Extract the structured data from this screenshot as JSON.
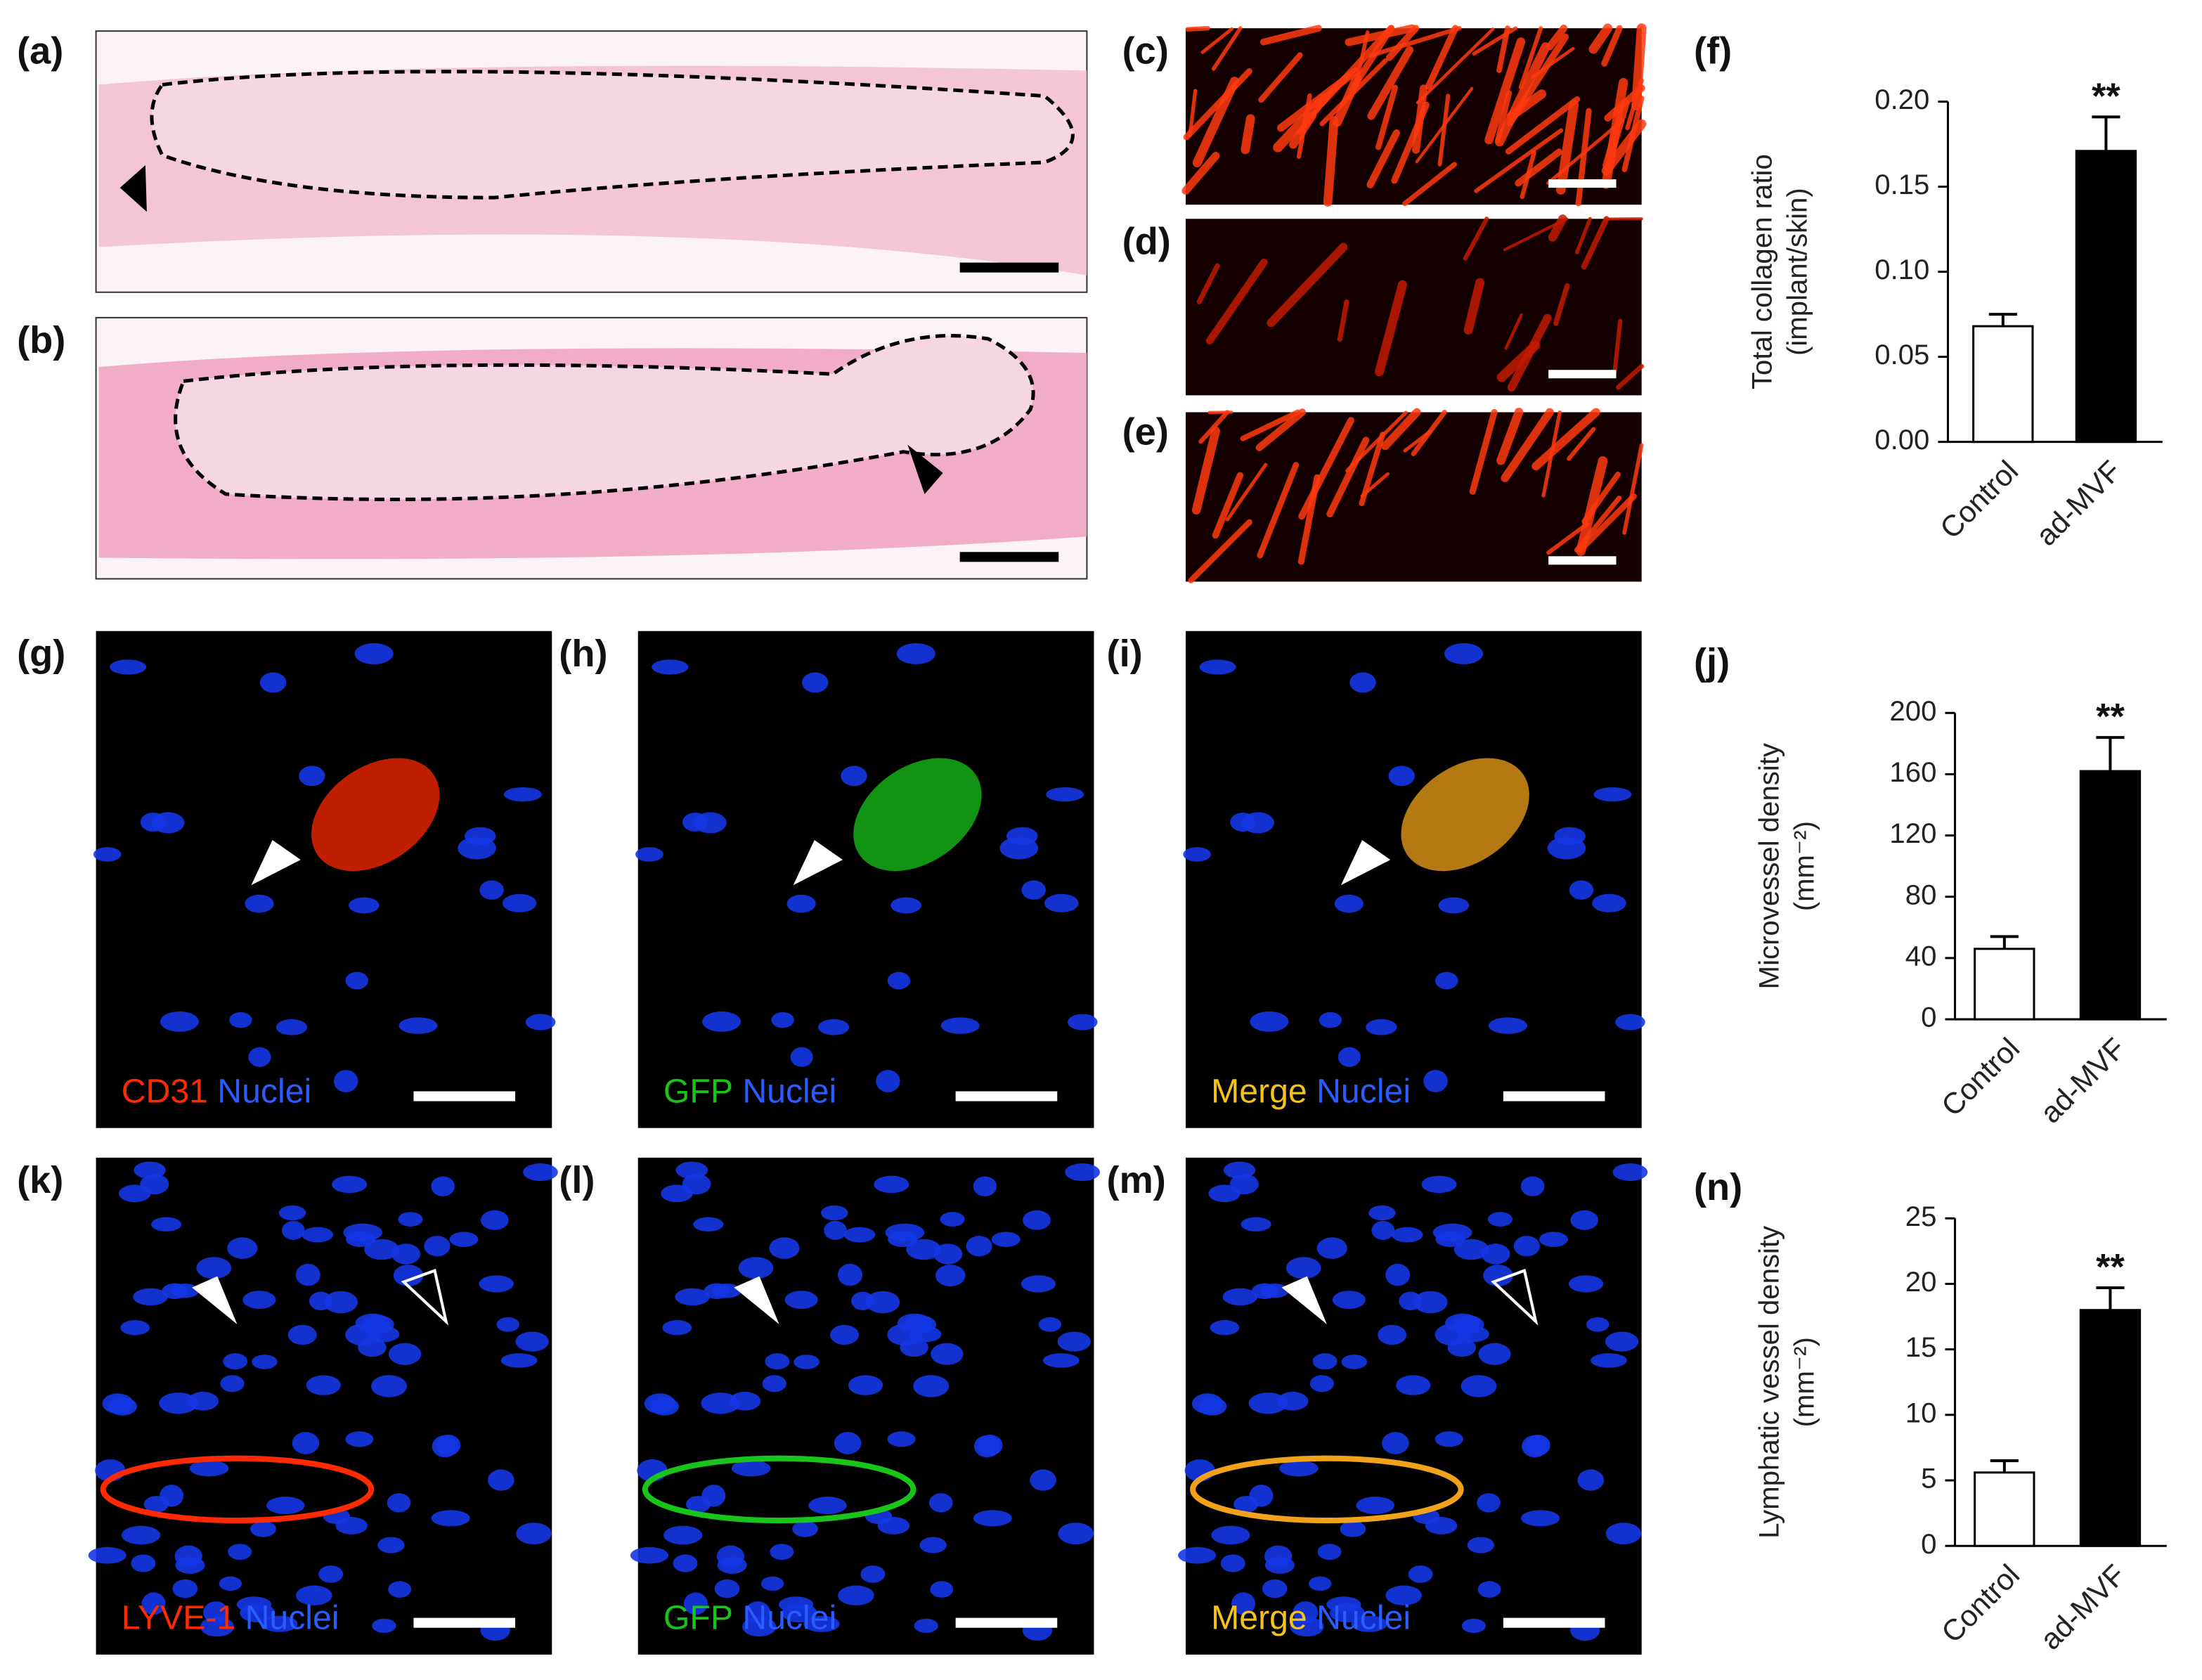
{
  "panels": {
    "labels": [
      "(a)",
      "(b)",
      "(c)",
      "(d)",
      "(e)",
      "(f)",
      "(g)",
      "(h)",
      "(i)",
      "(j)",
      "(k)",
      "(l)",
      "(m)",
      "(n)"
    ],
    "captions": [
      [
        "CD31",
        "Nuclei"
      ],
      [
        "GFP",
        "Nuclei"
      ],
      [
        "Merge",
        "Nuclei"
      ],
      [
        "LYVE-1",
        "Nuclei"
      ],
      [
        "GFP",
        "Nuclei"
      ],
      [
        "Merge",
        "Nuclei"
      ]
    ]
  },
  "chart_data": [
    {
      "type": "bar",
      "ylabel": [
        "Total collagen ratio",
        "(implant/skin)"
      ],
      "categories": [
        "Control",
        "ad-MVF"
      ],
      "values": [
        0.068,
        0.171
      ],
      "errors": [
        0.007,
        0.02
      ],
      "colors": [
        "#ffffff",
        "#000000"
      ],
      "annotation": "**",
      "ylim": [
        0,
        0.2
      ],
      "yticks": [
        {
          "value": 0,
          "label": "0.00"
        },
        0.05,
        {
          "value": 0.1,
          "label": "0.10"
        },
        0.15,
        {
          "value": 0.2,
          "label": "0.20"
        }
      ]
    },
    {
      "type": "bar",
      "ylabel": [
        "Microvessel density",
        "(mm⁻²)"
      ],
      "categories": [
        "Control",
        "ad-MVF"
      ],
      "values": [
        46,
        162
      ],
      "errors": [
        8,
        22
      ],
      "colors": [
        "#ffffff",
        "#000000"
      ],
      "annotation": "**",
      "ylim": [
        0,
        200
      ],
      "yticks": [
        0,
        40,
        80,
        120,
        160,
        200
      ]
    },
    {
      "type": "bar",
      "ylabel": [
        "Lymphatic vessel density",
        "(mm⁻²)"
      ],
      "categories": [
        "Control",
        "ad-MVF"
      ],
      "values": [
        5.6,
        18
      ],
      "errors": [
        0.9,
        1.7
      ],
      "colors": [
        "#ffffff",
        "#000000"
      ],
      "annotation": "**",
      "ylim": [
        0,
        25
      ],
      "yticks": [
        0,
        5,
        10,
        15,
        20,
        25
      ]
    }
  ]
}
